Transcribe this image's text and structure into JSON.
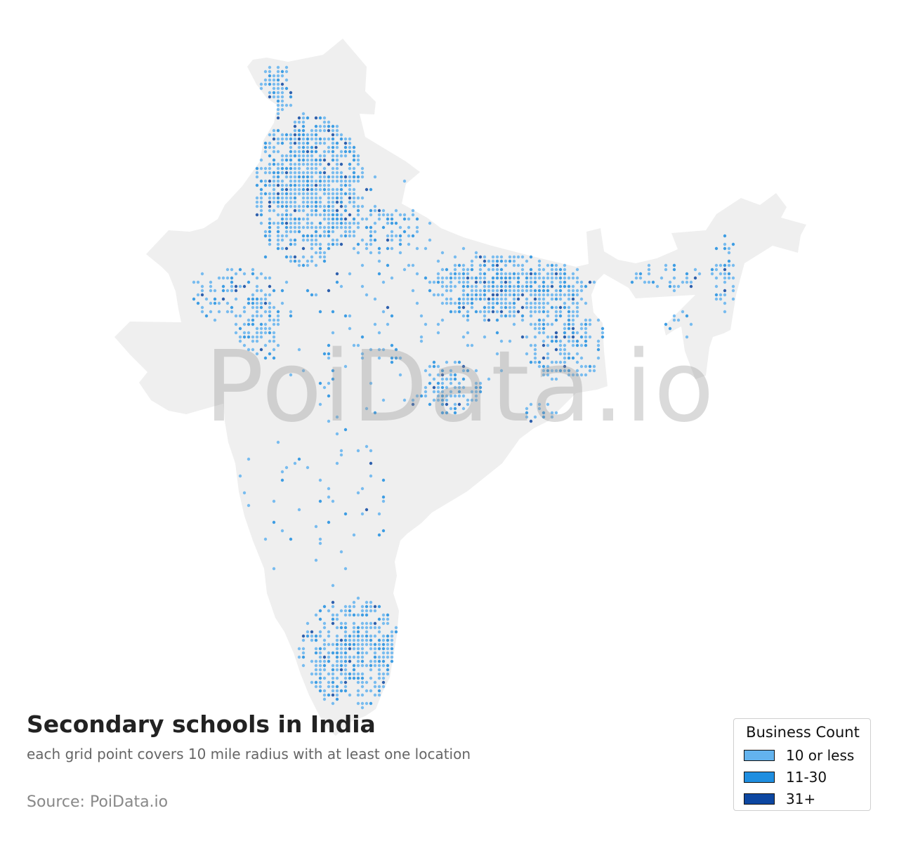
{
  "title": "Secondary schools in India",
  "subtitle": "each grid point covers 10 mile radius with at least one location",
  "source": "Source: PoiData.io",
  "watermark": "PoiData.io",
  "colors": {
    "land": "#efefef",
    "low": "#63b3ee",
    "mid": "#1f8ee0",
    "high": "#0d47a1",
    "watermark": "#969696"
  },
  "legend": {
    "title": "Business Count",
    "items": [
      {
        "label": "10 or less",
        "color": "#63b3ee"
      },
      {
        "label": "11-30",
        "color": "#1f8ee0"
      },
      {
        "label": "31+",
        "color": "#0d47a1"
      }
    ]
  }
}
